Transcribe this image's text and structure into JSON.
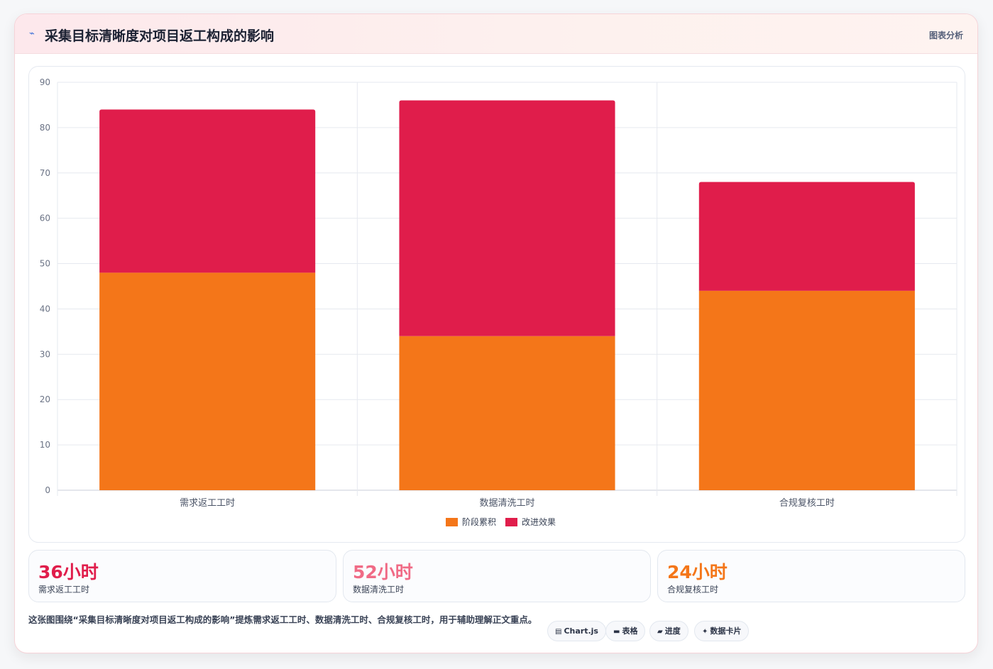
{
  "header": {
    "icon": "lightning-icon",
    "title": "采集目标清晰度对项目返工构成的影响",
    "link_label": "图表分析"
  },
  "chart_data": {
    "type": "bar",
    "stacked": true,
    "categories": [
      "需求返工工时",
      "数据清洗工时",
      "合规复核工时"
    ],
    "series": [
      {
        "name": "阶段累积",
        "values": [
          48,
          34,
          44
        ],
        "color": "#f47619"
      },
      {
        "name": "改进效果",
        "values": [
          36,
          52,
          24
        ],
        "color": "#e01d4b"
      }
    ],
    "ylim": [
      0,
      90
    ],
    "yticks": [
      0,
      10,
      20,
      30,
      40,
      50,
      60,
      70,
      80,
      90
    ],
    "grid": true,
    "legend_position": "bottom"
  },
  "stats": [
    {
      "value": "36小时",
      "label": "需求返工工时",
      "color": "#e01d4b"
    },
    {
      "value": "52小时",
      "label": "数据清洗工时",
      "color": "#f06b86"
    },
    {
      "value": "24小时",
      "label": "合规复核工时",
      "color": "#f47619"
    }
  ],
  "footnote": "这张图围绕“采集目标清晰度对项目返工构成的影响”提炼需求返工工时、数据清洗工时、合规复核工时，用于辅助理解正文重点。",
  "tags": [
    {
      "icon": "chart-icon",
      "glyph": "▤",
      "label": "Chart.js"
    },
    {
      "icon": "table-icon",
      "glyph": "▬",
      "label": "表格"
    },
    {
      "icon": "progress-icon",
      "glyph": "▰",
      "label": "进度"
    },
    {
      "icon": "sparkle-icon",
      "glyph": "✦",
      "label": "数据卡片"
    }
  ]
}
